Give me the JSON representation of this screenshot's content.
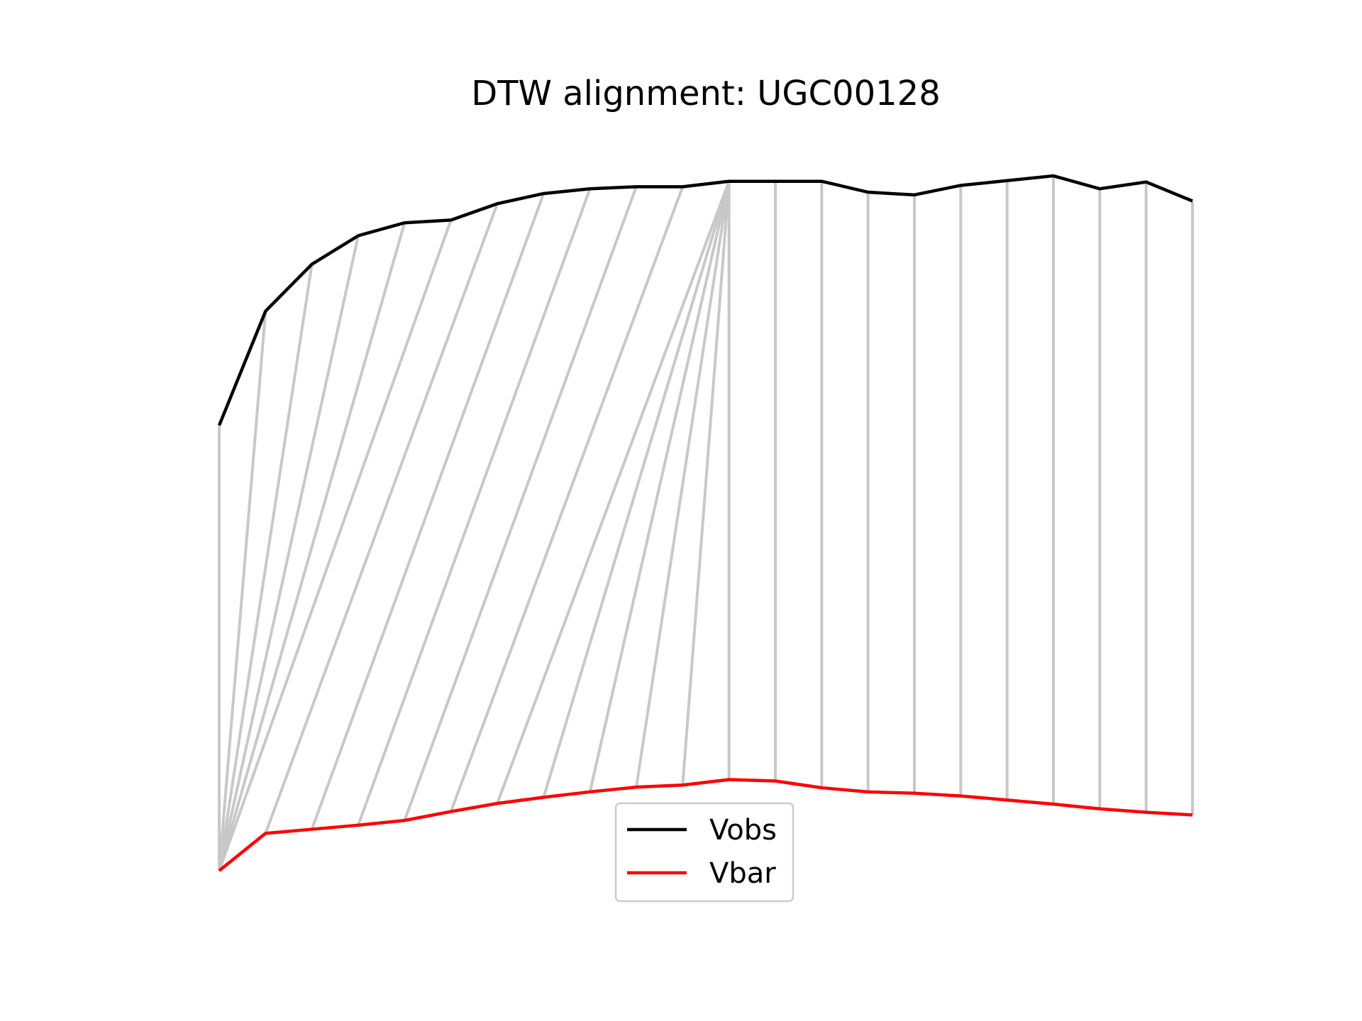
{
  "chart_data": {
    "type": "line",
    "title": "DTW alignment: UGC00128",
    "xlabel": "",
    "ylabel": "",
    "axes_visible": false,
    "grid": false,
    "legend_placement": "lower center",
    "x": [
      0,
      1,
      2,
      3,
      4,
      5,
      6,
      7,
      8,
      9,
      10,
      11,
      12,
      13,
      14,
      15,
      16,
      17,
      18,
      19,
      20,
      21
    ],
    "series": [
      {
        "name": "Vobs",
        "color": "#000000",
        "values": [
          0.655,
          0.823,
          0.892,
          0.934,
          0.953,
          0.957,
          0.981,
          0.996,
          1.003,
          1.006,
          1.006,
          1.014,
          1.014,
          1.014,
          0.998,
          0.994,
          1.008,
          1.015,
          1.022,
          1.003,
          1.013,
          0.985
        ]
      },
      {
        "name": "Vbar",
        "color": "#ff0000",
        "values": [
          0.0,
          0.055,
          0.061,
          0.067,
          0.074,
          0.087,
          0.099,
          0.108,
          0.116,
          0.123,
          0.126,
          0.134,
          0.132,
          0.122,
          0.116,
          0.114,
          0.11,
          0.104,
          0.098,
          0.091,
          0.086,
          0.082
        ]
      }
    ],
    "alignment": {
      "color": "#c8c8c8",
      "pairs": [
        [
          0,
          0
        ],
        [
          1,
          0
        ],
        [
          2,
          0
        ],
        [
          3,
          0
        ],
        [
          4,
          0
        ],
        [
          5,
          0
        ],
        [
          6,
          1
        ],
        [
          7,
          2
        ],
        [
          8,
          3
        ],
        [
          9,
          4
        ],
        [
          10,
          5
        ],
        [
          11,
          6
        ],
        [
          11,
          7
        ],
        [
          11,
          8
        ],
        [
          11,
          9
        ],
        [
          11,
          10
        ],
        [
          11,
          11
        ],
        [
          12,
          12
        ],
        [
          13,
          13
        ],
        [
          14,
          14
        ],
        [
          15,
          15
        ],
        [
          16,
          16
        ],
        [
          17,
          17
        ],
        [
          18,
          18
        ],
        [
          19,
          19
        ],
        [
          20,
          20
        ],
        [
          21,
          21
        ]
      ]
    },
    "xlim": [
      0,
      21
    ],
    "ylim": [
      -0.05,
      1.07
    ]
  }
}
